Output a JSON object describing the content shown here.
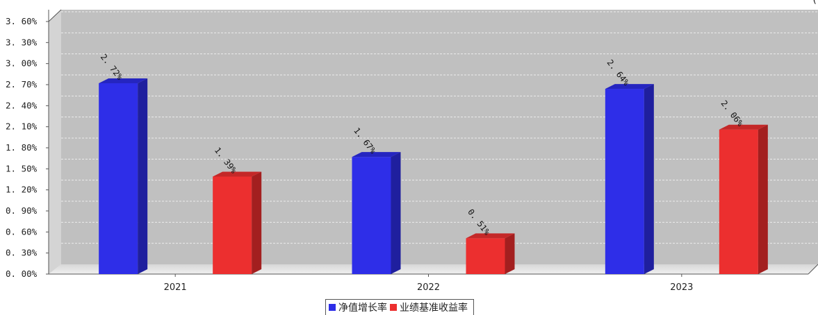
{
  "corner_text": "(",
  "chart_data": {
    "type": "bar",
    "categories": [
      "2021",
      "2022",
      "2023"
    ],
    "series": [
      {
        "name": "净值增长率",
        "values": [
          2.72,
          1.67,
          2.64
        ],
        "labels": [
          "2.72%",
          "1.67%",
          "2.64%"
        ],
        "color": "#2e2ee8",
        "color_side": "#1f1f9e",
        "color_top": "#2525c0"
      },
      {
        "name": "业绩基准收益率",
        "values": [
          1.39,
          0.51,
          2.06
        ],
        "labels": [
          "1.39%",
          "0.51%",
          "2.06%"
        ],
        "color": "#ec2f2f",
        "color_side": "#a31f1f",
        "color_top": "#c42828"
      }
    ],
    "yticks": [
      "0.00%",
      "0.30%",
      "0.60%",
      "0.90%",
      "1.20%",
      "1.50%",
      "1.80%",
      "2.10%",
      "2.40%",
      "2.70%",
      "3.00%",
      "3.30%",
      "3.60%"
    ],
    "ylim": [
      0,
      3.6
    ],
    "grid": true,
    "legend_position": "bottom-center",
    "plot_background": "#c0c0c0",
    "title": "",
    "xlabel": "",
    "ylabel": ""
  }
}
